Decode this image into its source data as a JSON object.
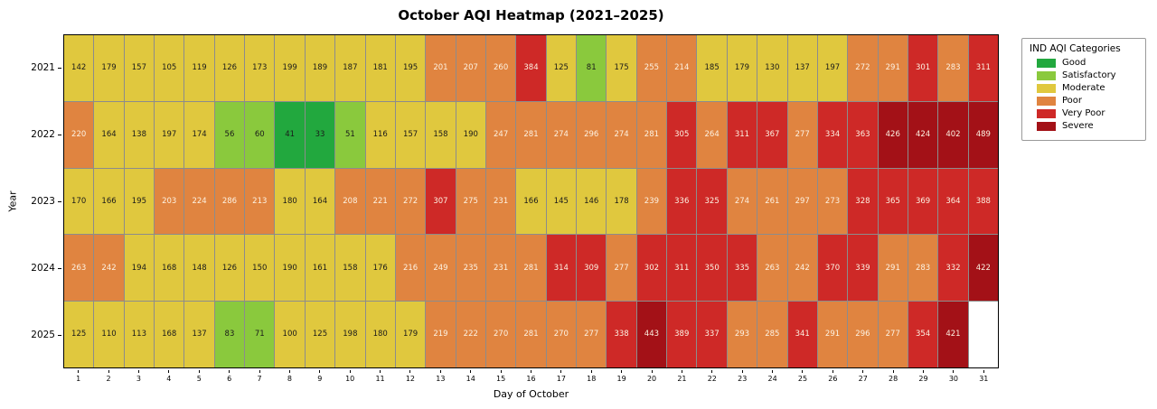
{
  "title": "October AQI Heatmap (2021–2025)",
  "colors": {
    "gridline": "#8c8c8c",
    "frame": "#000000",
    "cell_text_dark": "#1a1a1a",
    "cell_text_light": "#fdf2e2",
    "missing_cell": "#ffffff"
  },
  "legend": {
    "title": "IND AQI Categories",
    "items": [
      {
        "label": "Good",
        "color": "#22a83e"
      },
      {
        "label": "Satisfactory",
        "color": "#8ac93d"
      },
      {
        "label": "Moderate",
        "color": "#e0c83e"
      },
      {
        "label": "Poor",
        "color": "#e08440"
      },
      {
        "label": "Very Poor",
        "color": "#ce2927"
      },
      {
        "label": "Severe",
        "color": "#a31117"
      }
    ]
  },
  "chart_data": {
    "type": "heatmap",
    "title": "October AQI Heatmap (2021–2025)",
    "xlabel": "Day of October",
    "ylabel": "Year",
    "x": [
      1,
      2,
      3,
      4,
      5,
      6,
      7,
      8,
      9,
      10,
      11,
      12,
      13,
      14,
      15,
      16,
      17,
      18,
      19,
      20,
      21,
      22,
      23,
      24,
      25,
      26,
      27,
      28,
      29,
      30,
      31
    ],
    "value_bins": {
      "upper_bounds": [
        50,
        100,
        200,
        300,
        400,
        500
      ]
    },
    "rows": [
      {
        "year": "2021",
        "values": [
          142,
          179,
          157,
          105,
          119,
          126,
          173,
          199,
          189,
          187,
          181,
          195,
          201,
          207,
          260,
          384,
          125,
          81,
          175,
          255,
          214,
          185,
          179,
          130,
          137,
          197,
          272,
          291,
          301,
          283,
          311
        ]
      },
      {
        "year": "2022",
        "values": [
          220,
          164,
          138,
          197,
          174,
          56,
          60,
          41,
          33,
          51,
          116,
          157,
          158,
          190,
          247,
          281,
          274,
          296,
          274,
          281,
          305,
          264,
          311,
          367,
          277,
          334,
          363,
          426,
          424,
          402,
          489
        ]
      },
      {
        "year": "2023",
        "values": [
          170,
          166,
          195,
          203,
          224,
          286,
          213,
          180,
          164,
          208,
          221,
          272,
          307,
          275,
          231,
          166,
          145,
          146,
          178,
          239,
          336,
          325,
          274,
          261,
          297,
          273,
          328,
          365,
          369,
          364,
          388
        ]
      },
      {
        "year": "2024",
        "values": [
          263,
          242,
          194,
          168,
          148,
          126,
          150,
          190,
          161,
          158,
          176,
          216,
          249,
          235,
          231,
          281,
          314,
          309,
          277,
          302,
          311,
          350,
          335,
          263,
          242,
          370,
          339,
          291,
          283,
          332,
          422
        ]
      },
      {
        "year": "2025",
        "values": [
          125,
          110,
          113,
          168,
          137,
          83,
          71,
          100,
          125,
          198,
          180,
          179,
          219,
          222,
          270,
          281,
          270,
          277,
          338,
          443,
          389,
          337,
          293,
          285,
          341,
          291,
          296,
          277,
          354,
          421,
          null
        ]
      }
    ]
  }
}
